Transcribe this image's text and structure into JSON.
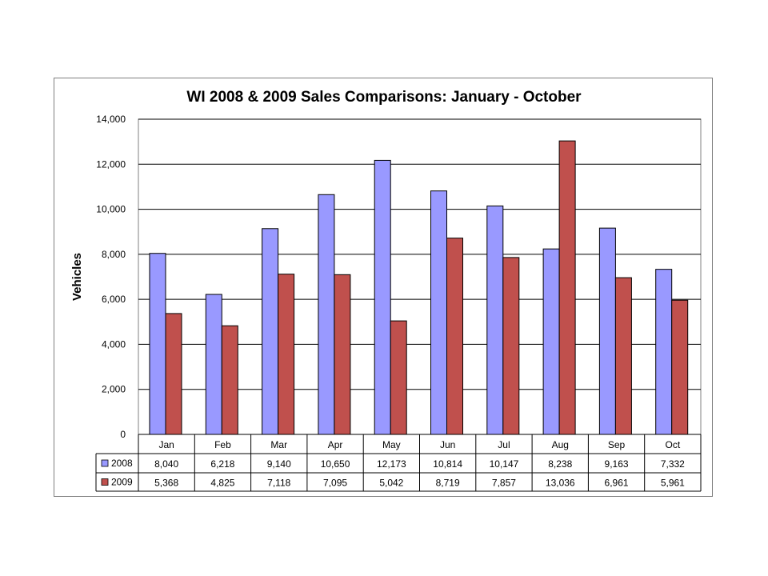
{
  "chart_data": {
    "type": "bar",
    "title": "WI 2008 & 2009 Sales Comparisons: January - October",
    "xlabel": "",
    "ylabel": "Vehicles",
    "ylim": [
      0,
      14000
    ],
    "yticks": [
      "0",
      "2,000",
      "4,000",
      "6,000",
      "8,000",
      "10,000",
      "12,000",
      "14,000"
    ],
    "grid": true,
    "legend": "data-table-left",
    "categories": [
      "Jan",
      "Feb",
      "Mar",
      "Apr",
      "May",
      "Jun",
      "Jul",
      "Aug",
      "Sep",
      "Oct"
    ],
    "series": [
      {
        "name": "2008",
        "color": "#9999ff",
        "values": [
          8040,
          6218,
          9140,
          10650,
          12173,
          10814,
          10147,
          8238,
          9163,
          7332
        ],
        "labels": [
          "8,040",
          "6,218",
          "9,140",
          "10,650",
          "12,173",
          "10,814",
          "10,147",
          "8,238",
          "9,163",
          "7,332"
        ]
      },
      {
        "name": "2009",
        "color": "#c0504d",
        "values": [
          5368,
          4825,
          7118,
          7095,
          5042,
          8719,
          7857,
          13036,
          6961,
          5961
        ],
        "labels": [
          "5,368",
          "4,825",
          "7,118",
          "7,095",
          "5,042",
          "8,719",
          "7,857",
          "13,036",
          "6,961",
          "5,961"
        ]
      }
    ]
  }
}
